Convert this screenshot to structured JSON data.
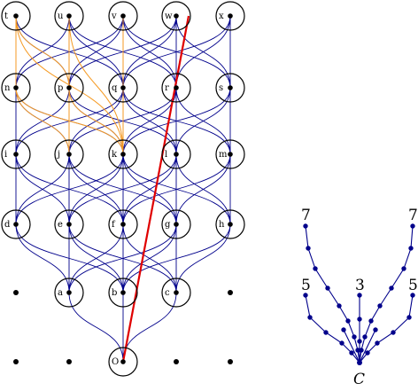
{
  "graph": {
    "nodes": [
      {
        "id": "t",
        "label": "t",
        "row": 0,
        "col": 0
      },
      {
        "id": "u",
        "label": "u",
        "row": 0,
        "col": 1
      },
      {
        "id": "v",
        "label": "v",
        "row": 0,
        "col": 2
      },
      {
        "id": "w",
        "label": "w",
        "row": 0,
        "col": 3
      },
      {
        "id": "x",
        "label": "x",
        "row": 0,
        "col": 4
      },
      {
        "id": "n",
        "label": "n",
        "row": 1,
        "col": 0
      },
      {
        "id": "p",
        "label": "p",
        "row": 1,
        "col": 1
      },
      {
        "id": "q",
        "label": "q",
        "row": 1,
        "col": 2
      },
      {
        "id": "r",
        "label": "r",
        "row": 1,
        "col": 3
      },
      {
        "id": "s",
        "label": "s",
        "row": 1,
        "col": 4
      },
      {
        "id": "i",
        "label": "i",
        "row": 2,
        "col": 0
      },
      {
        "id": "j",
        "label": "j",
        "row": 2,
        "col": 1
      },
      {
        "id": "k",
        "label": "k",
        "row": 2,
        "col": 2
      },
      {
        "id": "l",
        "label": "l",
        "row": 2,
        "col": 3
      },
      {
        "id": "m",
        "label": "m",
        "row": 2,
        "col": 4
      },
      {
        "id": "d",
        "label": "d",
        "row": 3,
        "col": 0
      },
      {
        "id": "e",
        "label": "e",
        "row": 3,
        "col": 1
      },
      {
        "id": "f",
        "label": "f",
        "row": 3,
        "col": 2
      },
      {
        "id": "g",
        "label": "g",
        "row": 3,
        "col": 3
      },
      {
        "id": "h",
        "label": "h",
        "row": 3,
        "col": 4
      },
      {
        "id": "a",
        "label": "a",
        "row": 4,
        "col": 1
      },
      {
        "id": "b",
        "label": "b",
        "row": 4,
        "col": 2
      },
      {
        "id": "c",
        "label": "c",
        "row": 4,
        "col": 3
      },
      {
        "id": "O",
        "label": "O",
        "row": 5,
        "col": 2
      }
    ],
    "plain_dots": [
      {
        "row": 4,
        "col": 0
      },
      {
        "row": 4,
        "col": 4
      },
      {
        "row": 5,
        "col": 0
      },
      {
        "row": 5,
        "col": 1
      },
      {
        "row": 5,
        "col": 3
      },
      {
        "row": 5,
        "col": 4
      }
    ],
    "orange_edges": [
      [
        "t",
        "k"
      ],
      [
        "u",
        "k"
      ],
      [
        "v",
        "k"
      ],
      [
        "n",
        "k"
      ],
      [
        "p",
        "k"
      ],
      [
        "q",
        "k"
      ],
      [
        "t",
        "p"
      ],
      [
        "u",
        "p"
      ],
      [
        "t",
        "n"
      ],
      [
        "n",
        "j"
      ],
      [
        "p",
        "j"
      ]
    ],
    "red_path": [
      "O",
      "w"
    ],
    "colors": {
      "blue": "#00008b",
      "orange": "#f59a23",
      "red": "#e00000"
    }
  },
  "tree": {
    "root_label": "C",
    "leaf_labels": [
      "7",
      "5",
      "3",
      "5",
      "7"
    ]
  }
}
